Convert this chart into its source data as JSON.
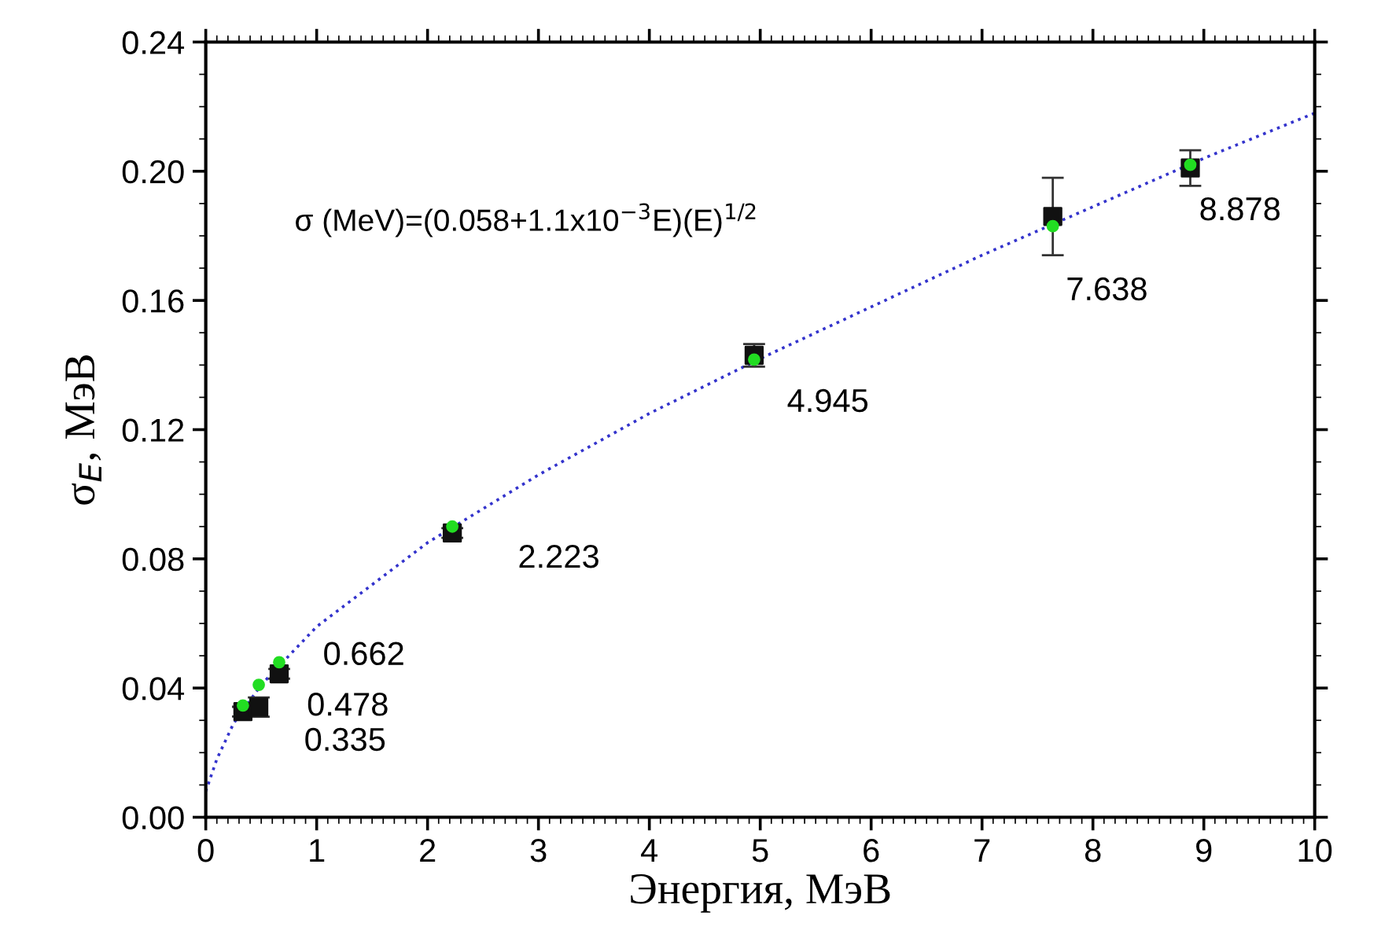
{
  "chart_data": {
    "type": "scatter",
    "xlabel": "Энергия, МэВ",
    "ylabel": "σ$_{E}$, МэВ",
    "xlim": [
      0,
      10
    ],
    "xticks": [
      0,
      1,
      2,
      3,
      4,
      5,
      6,
      7,
      8,
      9,
      10
    ],
    "ylim": [
      0,
      0.24
    ],
    "yticks": [
      {
        "value": 0,
        "label": "0.00"
      },
      0.04,
      0.08,
      0.12,
      0.16,
      {
        "value": 0.2,
        "label": "0.20"
      },
      0.24
    ],
    "grid": false,
    "legend": false,
    "series": [
      {
        "type": "line",
        "color": "#3333cc",
        "line_style": "dotted",
        "marker": "none",
        "x": [
          0,
          0.1,
          0.25,
          0.5,
          1,
          2,
          3,
          4,
          5,
          6,
          7,
          8,
          9,
          10
        ],
        "values": [
          0.008,
          0.018,
          0.029,
          0.041,
          0.059,
          0.085,
          0.106,
          0.125,
          0.142,
          0.158,
          0.174,
          0.189,
          0.204,
          0.218
        ]
      },
      {
        "color": "#111111",
        "marker": "square",
        "x": [
          0.335,
          0.478,
          0.662,
          2.223,
          4.945,
          7.638,
          8.878
        ],
        "values": [
          0.0327,
          0.0341,
          0.0444,
          0.088,
          0.143,
          0.186,
          0.201
        ],
        "errors": [
          0.0015,
          0.003,
          0.0015,
          0.0015,
          0.0035,
          0.012,
          0.0055
        ]
      },
      {
        "color": "#22dd22",
        "marker": "circle",
        "x": [
          0.335,
          0.478,
          0.662,
          2.223,
          4.945,
          7.638,
          8.878
        ],
        "values": [
          0.0346,
          0.041,
          0.048,
          0.09,
          0.1417,
          0.183,
          0.202
        ]
      }
    ],
    "annotations": [
      "σ (MeV)=(0.058+1.1x10$^{−3}$E)(E)$^{1/2}$",
      {
        "text": "0.335",
        "x": 0.335,
        "y": 0.0327
      },
      {
        "text": "0.478",
        "x": 0.478,
        "y": 0.0341
      },
      {
        "text": "0.662",
        "x": 0.662,
        "y": 0.0444
      },
      {
        "text": "2.223",
        "x": 2.223,
        "y": 0.088
      },
      {
        "text": "4.945",
        "x": 4.945,
        "y": 0.143
      },
      {
        "text": "7.638",
        "x": 7.638,
        "y": 0.183
      },
      {
        "text": "8.878",
        "x": 8.878,
        "y": 0.201
      }
    ]
  }
}
